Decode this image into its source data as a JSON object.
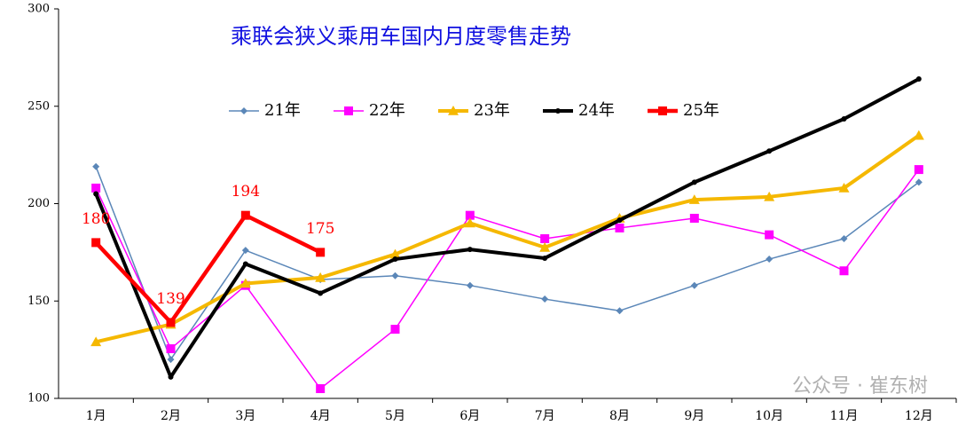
{
  "chart_data": {
    "type": "line",
    "title": "乘联会狭义乘用车国内月度零售走势",
    "categories": [
      "1月",
      "2月",
      "3月",
      "4月",
      "5月",
      "6月",
      "7月",
      "8月",
      "9月",
      "10月",
      "11月",
      "12月"
    ],
    "series": [
      {
        "name": "21年",
        "color": "#5b87b8",
        "values": [
          219,
          120,
          176,
          161,
          163,
          158,
          151,
          145,
          158,
          171.5,
          182,
          211
        ]
      },
      {
        "name": "22年",
        "color": "#ff00ff",
        "values": [
          208,
          125.5,
          158,
          105,
          135.5,
          194,
          182,
          187.5,
          192.5,
          184,
          165.5,
          217.5
        ]
      },
      {
        "name": "23年",
        "color": "#f5b800",
        "values": [
          129,
          138,
          159,
          162,
          174,
          190,
          177.5,
          192.5,
          202,
          203.5,
          208,
          235
        ]
      },
      {
        "name": "24年",
        "color": "#000000",
        "values": [
          205,
          111,
          169,
          154,
          171.5,
          176.5,
          172,
          191.5,
          211,
          227,
          243.5,
          264
        ]
      },
      {
        "name": "25年",
        "color": "#ff0000",
        "values": [
          180,
          139,
          194,
          175,
          null,
          null,
          null,
          null,
          null,
          null,
          null,
          null
        ],
        "data_labels": true
      }
    ],
    "ylim": [
      100,
      300
    ],
    "yticks": [
      100,
      150,
      200,
      250,
      300
    ],
    "grid": false,
    "watermark": "公众号 · 崔东树"
  }
}
